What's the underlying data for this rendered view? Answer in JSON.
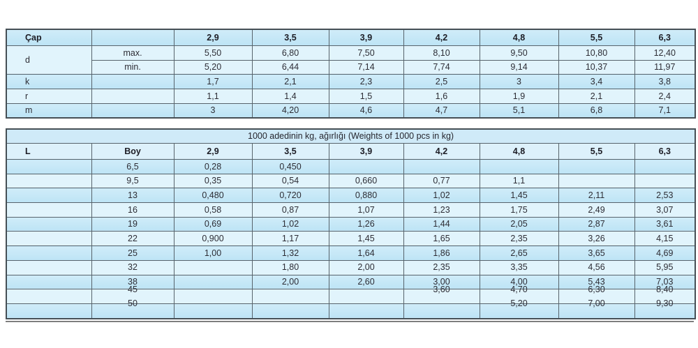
{
  "colors": {
    "row_medium_blue": "#bde4f5",
    "row_light_blue": "#e1f4fc",
    "title_row_blue": "#cfeaf8",
    "grid_line": "#57636b",
    "text": "#2d2d35",
    "separator_gray": "#7e7e7e"
  },
  "dimension_table": {
    "corner_label": "Çap",
    "diameters": [
      "2,9",
      "3,5",
      "3,9",
      "4,2",
      "4,8",
      "5,5",
      "6,3"
    ],
    "rows": [
      {
        "label": "d",
        "label_rowspan": 2,
        "sub": "max.",
        "shade": "light",
        "values": [
          "5,50",
          "6,80",
          "7,50",
          "8,10",
          "9,50",
          "10,80",
          "12,40"
        ]
      },
      {
        "label": null,
        "sub": "min.",
        "shade": "light",
        "values": [
          "5,20",
          "6,44",
          "7,14",
          "7,74",
          "9,14",
          "10,37",
          "11,97"
        ]
      },
      {
        "label": "k",
        "sub": "",
        "shade": "med",
        "values": [
          "1,7",
          "2,1",
          "2,3",
          "2,5",
          "3",
          "3,4",
          "3,8"
        ]
      },
      {
        "label": "r",
        "sub": "",
        "shade": "light",
        "values": [
          "1,1",
          "1,4",
          "1,5",
          "1,6",
          "1,9",
          "2,1",
          "2,4"
        ]
      },
      {
        "label": "m",
        "sub": "",
        "shade": "med",
        "values": [
          "3",
          "4,20",
          "4,6",
          "4,7",
          "5,1",
          "6,8",
          "7,1"
        ]
      }
    ]
  },
  "weight_table": {
    "title": "1000 adedinin kg, ağırlığı  (Weights of 1000 pcs in kg)",
    "col1_header": "L",
    "col2_header": "Boy",
    "diameters": [
      "2,9",
      "3,5",
      "3,9",
      "4,2",
      "4,8",
      "5,5",
      "6,3"
    ],
    "rows": [
      {
        "boy": "6,5",
        "shade": "med",
        "lifted": false,
        "values": [
          "0,28",
          "0,450",
          "",
          "",
          "",
          "",
          ""
        ]
      },
      {
        "boy": "9,5",
        "shade": "light",
        "lifted": false,
        "values": [
          "0,35",
          "0,54",
          "0,660",
          "0,77",
          "1,1",
          "",
          ""
        ]
      },
      {
        "boy": "13",
        "shade": "med",
        "lifted": false,
        "values": [
          "0,480",
          "0,720",
          "0,880",
          "1,02",
          "1,45",
          "2,11",
          "2,53"
        ]
      },
      {
        "boy": "16",
        "shade": "light",
        "lifted": false,
        "values": [
          "0,58",
          "0,87",
          "1,07",
          "1,23",
          "1,75",
          "2,49",
          "3,07"
        ]
      },
      {
        "boy": "19",
        "shade": "med",
        "lifted": false,
        "values": [
          "0,69",
          "1,02",
          "1,26",
          "1,44",
          "2,05",
          "2,87",
          "3,61"
        ]
      },
      {
        "boy": "22",
        "shade": "light",
        "lifted": false,
        "values": [
          "0,900",
          "1,17",
          "1,45",
          "1,65",
          "2,35",
          "3,26",
          "4,15"
        ]
      },
      {
        "boy": "25",
        "shade": "med",
        "lifted": false,
        "values": [
          "1,00",
          "1,32",
          "1,64",
          "1,86",
          "2,65",
          "3,65",
          "4,69"
        ]
      },
      {
        "boy": "32",
        "shade": "light",
        "lifted": false,
        "values": [
          "",
          "1,80",
          "2,00",
          "2,35",
          "3,35",
          "4,56",
          "5,95"
        ]
      },
      {
        "boy": "38",
        "shade": "med",
        "lifted": false,
        "values": [
          "",
          "2,00",
          "2,60",
          "3,00",
          "4,00",
          "5,43",
          "7,03"
        ]
      },
      {
        "boy": "45",
        "shade": "light",
        "lifted": true,
        "values": [
          "",
          "",
          "",
          "3,60",
          "4,70",
          "6,30",
          "8,40"
        ]
      },
      {
        "boy": "50",
        "shade": "med",
        "lifted": true,
        "values": [
          "",
          "",
          "",
          "",
          "5,20",
          "7,00",
          "9,30"
        ]
      }
    ]
  }
}
